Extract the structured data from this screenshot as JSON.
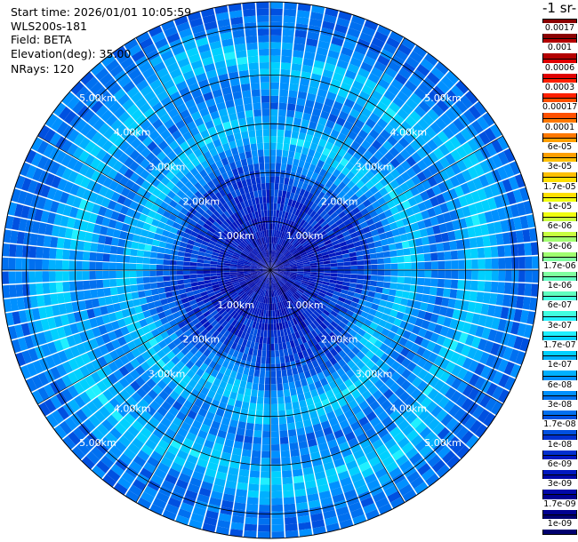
{
  "header": {
    "start_time": "Start time: 2026/01/01 10:05:59",
    "instrument": "WLS200s-181",
    "field": "Field: BETA",
    "elevation": "Elevation(deg): 35.00",
    "nrays": "NRays: 120"
  },
  "colorbar": {
    "title": "-1 sr-",
    "labels": [
      "0.0017",
      "0.001",
      "0.0006",
      "0.0003",
      "0.00017",
      "0.0001",
      "6e-05",
      "3e-05",
      "1.7e-05",
      "1e-05",
      "6e-06",
      "3e-06",
      "1.7e-06",
      "1e-06",
      "6e-07",
      "3e-07",
      "1.7e-07",
      "1e-07",
      "6e-08",
      "3e-08",
      "1.7e-08",
      "1e-08",
      "6e-09",
      "3e-09",
      "1.7e-09",
      "1e-09"
    ],
    "colors": [
      "#8b0000",
      "#b40000",
      "#e00000",
      "#ff2000",
      "#ff5000",
      "#ff7800",
      "#ffa000",
      "#ffc000",
      "#ffe000",
      "#f0ff10",
      "#c8ff40",
      "#a0ff70",
      "#80ffa0",
      "#60ffc0",
      "#40ffe0",
      "#20f0ff",
      "#00d0ff",
      "#00b0ff",
      "#0090ff",
      "#0070f0",
      "#0050e0",
      "#0030d0",
      "#0018c0",
      "#0008a8",
      "#000090",
      "#000070"
    ]
  },
  "chart_data": {
    "type": "heatmap",
    "projection": "polar PPI scan",
    "rays": 120,
    "max_range_km": 5.5,
    "range_rings_km": [
      1,
      2,
      3,
      4,
      5
    ],
    "ring_labels": [
      "1.00km",
      "2.00km",
      "3.00km",
      "4.00km",
      "5.00km"
    ],
    "field": "BETA",
    "scale": "log",
    "value_range": [
      1e-09,
      0.0017
    ],
    "profile_by_range_km": [
      {
        "range_km": 0.0,
        "value": 3e-09
      },
      {
        "range_km": 1.0,
        "value": 6e-09
      },
      {
        "range_km": 2.0,
        "value": 1.7e-08
      },
      {
        "range_km": 2.8,
        "value": 1.7e-07
      },
      {
        "range_km": 3.5,
        "value": 3e-08
      },
      {
        "range_km": 4.3,
        "value": 1.7e-07
      },
      {
        "range_km": 5.0,
        "value": 3e-08
      }
    ]
  }
}
